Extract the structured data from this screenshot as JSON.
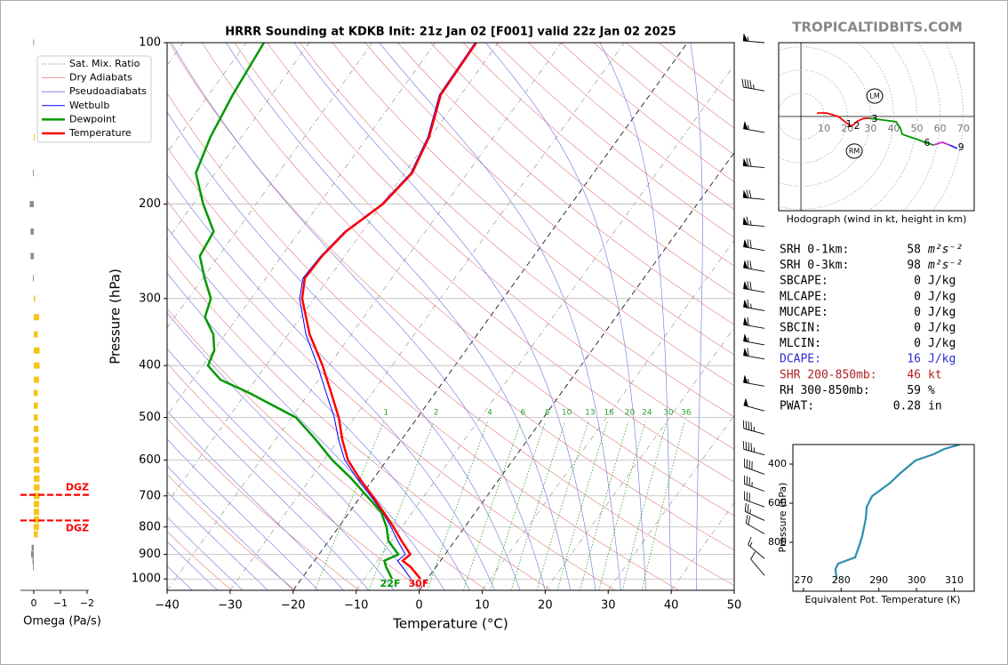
{
  "chart_data": [
    {
      "type": "skewt",
      "title": "HRRR Sounding at KDKB Init: 21z Jan 02 [F001] valid 22z Jan 02 2025",
      "xlabel": "Temperature (°C)",
      "ylabel": "Pressure (hPa)",
      "xlim": [
        -40,
        50
      ],
      "ylim": [
        1050,
        100
      ],
      "ylog": true,
      "xticks": [
        {
          "value": -40,
          "label": "−40"
        },
        {
          "value": -30,
          "label": "−30"
        },
        {
          "value": -20,
          "label": "−20"
        },
        {
          "value": -10,
          "label": "−10"
        },
        0,
        10,
        20,
        30,
        40,
        50
      ],
      "yticks": [
        100,
        200,
        300,
        400,
        500,
        600,
        700,
        800,
        900,
        1000
      ],
      "grid": true,
      "legend": "upper left",
      "reference_lines": [
        {
          "name": "Sat. Mix. Ratio",
          "color": "#2ca02c",
          "labels": [
            1,
            2,
            4,
            6,
            8,
            10,
            13,
            16,
            20,
            24,
            30,
            36
          ]
        },
        {
          "name": "Dry Adiabats",
          "color": "#e07b7b"
        },
        {
          "name": "Pseudoadiabats",
          "color": "#6f6fe0"
        }
      ],
      "series": [
        {
          "name": "Wetbulb",
          "color": "#0000ff",
          "x": [
            -2.6,
            -5.3,
            -6.8,
            -6.3,
            -9.0,
            -11.7,
            -14.8,
            -18.5,
            -22.6,
            -26.7,
            -30.0,
            -33.2,
            -37.3,
            -41.8,
            -47.2,
            -52.3,
            -54.1,
            -53.8,
            -52.8,
            -50.1,
            -49.0,
            -50.4,
            -53.4,
            -53.7
          ],
          "values": [
            1000,
            950,
            925,
            900,
            850,
            800,
            750,
            700,
            650,
            600,
            550,
            500,
            450,
            400,
            350,
            300,
            275,
            250,
            225,
            200,
            175,
            150,
            125,
            100
          ]
        },
        {
          "name": "Dewpoint",
          "color": "#009900",
          "surface_label": "22F",
          "x": [
            -5.6,
            -7.9,
            -8.9,
            -7.4,
            -10.5,
            -12.4,
            -15.0,
            -19.1,
            -23.5,
            -28.7,
            -33.6,
            -39.3,
            -49.5,
            -55.6,
            -59.2,
            -59.9,
            -61.9,
            -65.2,
            -66.4,
            -69.7,
            -73.0,
            -73.6,
            -78.4,
            -83.1,
            -84.9,
            -86.2,
            -87.2
          ],
          "values": [
            1000,
            950,
            925,
            900,
            850,
            800,
            750,
            700,
            650,
            600,
            550,
            500,
            450,
            425,
            400,
            375,
            350,
            325,
            300,
            275,
            250,
            225,
            200,
            175,
            150,
            125,
            100
          ]
        },
        {
          "name": "Temperature",
          "color": "#ff0000",
          "surface_label": "30F",
          "x": [
            -1.1,
            -4.0,
            -6.0,
            -5.5,
            -8.4,
            -11.3,
            -14.6,
            -18.2,
            -22.2,
            -26.2,
            -29.4,
            -32.5,
            -36.5,
            -41.0,
            -46.6,
            -51.9,
            -53.8,
            -53.6,
            -52.6,
            -49.9,
            -48.8,
            -50.2,
            -53.2,
            -53.5
          ],
          "values": [
            1000,
            950,
            925,
            900,
            850,
            800,
            750,
            700,
            650,
            600,
            550,
            500,
            450,
            400,
            350,
            300,
            275,
            250,
            225,
            200,
            175,
            150,
            125,
            100
          ]
        }
      ],
      "wind_barbs": {
        "values": [
          100,
          123,
          147,
          171,
          196,
          220,
          244,
          267,
          292,
          316,
          341,
          366,
          389,
          437,
          486,
          537,
          587,
          638,
          686,
          734,
          778,
          824,
          916,
          985
        ],
        "speed": [
          55,
          45,
          55,
          70,
          70,
          65,
          70,
          70,
          70,
          65,
          60,
          55,
          60,
          55,
          50,
          45,
          45,
          40,
          35,
          30,
          25,
          20,
          15,
          10
        ],
        "direction": [
          275,
          280,
          280,
          275,
          275,
          275,
          280,
          280,
          280,
          280,
          280,
          280,
          280,
          280,
          285,
          285,
          285,
          290,
          290,
          290,
          295,
          300,
          310,
          320
        ]
      }
    },
    {
      "type": "hbar",
      "xlabel": "Omega (Pa/s)",
      "xlim": [
        0.5,
        -2.07
      ],
      "ylim": [
        1050,
        100
      ],
      "ylog": true,
      "xticks": [
        0,
        {
          "value": -1,
          "label": "−1"
        },
        {
          "value": -2,
          "label": "−2"
        }
      ],
      "color": "#f5c518",
      "positive_color": "#8c8c8c",
      "y": [
        100,
        150,
        175,
        200,
        225,
        250,
        275,
        300,
        325,
        350,
        375,
        400,
        425,
        450,
        475,
        500,
        525,
        550,
        575,
        600,
        625,
        650,
        675,
        700,
        725,
        750,
        775,
        800,
        825,
        875,
        900,
        925,
        950
      ],
      "values": [
        0.02,
        -0.02,
        0.03,
        0.15,
        0.12,
        0.12,
        0.03,
        -0.05,
        -0.2,
        -0.15,
        -0.22,
        -0.22,
        -0.2,
        -0.15,
        -0.15,
        -0.15,
        -0.18,
        -0.18,
        -0.18,
        -0.2,
        -0.22,
        -0.22,
        -0.22,
        -0.22,
        -0.2,
        -0.2,
        -0.2,
        -0.2,
        -0.15,
        0.08,
        0.1,
        0.05,
        0.03
      ],
      "annotations": [
        {
          "text": "DGZ",
          "y": 697,
          "color": "#ff0000"
        },
        {
          "text": "DGZ",
          "y": 778,
          "color": "#ff0000"
        }
      ]
    },
    {
      "type": "hodograph",
      "caption": "Hodograph (wind in kt, height in km)",
      "xlim": [
        -9.6,
        74.7
      ],
      "ylim": [
        -40.6,
        31.8
      ],
      "xticks": [
        10,
        20,
        30,
        40,
        50,
        60,
        70
      ],
      "series": [
        {
          "color": "#ff0000",
          "x": [
            6.9,
            11.1,
            16.1,
            19.5,
            21.8,
            24.5,
            27.2,
            29.5
          ],
          "values": [
            1.5,
            1.5,
            0,
            -2.7,
            -4.2,
            -1.9,
            -0.8,
            -0.8
          ]
        },
        {
          "color": "#009900",
          "x": [
            29.5,
            32.2,
            41.0,
            42.9,
            43.7,
            49.4,
            53.3,
            57.1
          ],
          "values": [
            -0.8,
            -1.1,
            -2.3,
            -5.0,
            -7.7,
            -9.6,
            -11.1,
            -12.3
          ]
        },
        {
          "color": "#cc33cc",
          "x": [
            57.1,
            60.9,
            64.0
          ],
          "values": [
            -12.3,
            -11.1,
            -12.3
          ]
        },
        {
          "color": "#3333ff",
          "x": [
            64.0,
            67.4
          ],
          "values": [
            -12.3,
            -13.8
          ]
        }
      ],
      "height_labels": [
        {
          "text": "1",
          "x": 20.7,
          "y": -3.4
        },
        {
          "text": "2",
          "x": 24.1,
          "y": -4.2
        },
        {
          "text": "3",
          "x": 31.8,
          "y": -1.1
        },
        {
          "text": "6",
          "x": 54.4,
          "y": -11.5
        },
        {
          "text": "9",
          "x": 69.0,
          "y": -13.4
        }
      ],
      "storm_motion": [
        {
          "text": "LM",
          "x": 31.8,
          "y": 8.8
        },
        {
          "text": "RM",
          "x": 23.0,
          "y": -14.9
        }
      ]
    },
    {
      "type": "line",
      "xlabel": "Equivalent Pot. Temperature (K)",
      "ylabel": "Pressure (hPa)",
      "xlim": [
        267.2,
        315.3
      ],
      "ylim": [
        1050,
        300
      ],
      "xticks": [
        270,
        280,
        290,
        300,
        310
      ],
      "yticks": [
        400,
        600,
        800
      ],
      "series": [
        {
          "color": "#2b8fad",
          "x": [
            278.8,
            278.5,
            279.2,
            283.7,
            284.7,
            285.6,
            286.5,
            286.8,
            288.2,
            293.1,
            295.5,
            299.7,
            304.5,
            307.3,
            311.5
          ],
          "values": [
            991,
            936,
            909,
            877,
            823,
            768,
            682,
            618,
            564,
            495,
            450,
            382,
            350,
            323,
            300
          ]
        }
      ]
    }
  ],
  "indices": [
    {
      "label": "SRH 0-1km:",
      "value": 58,
      "unit": "m²s⁻²"
    },
    {
      "label": "SRH 0-3km:",
      "value": 98,
      "unit": "m²s⁻²"
    },
    {
      "label": "SBCAPE:",
      "value": 0,
      "unit": "J/kg"
    },
    {
      "label": "MLCAPE:",
      "value": 0,
      "unit": "J/kg"
    },
    {
      "label": "MUCAPE:",
      "value": 0,
      "unit": "J/kg"
    },
    {
      "label": "SBCIN:",
      "value": 0,
      "unit": "J/kg"
    },
    {
      "label": "MLCIN:",
      "value": 0,
      "unit": "J/kg"
    },
    {
      "label": "DCAPE:",
      "value": 16,
      "unit": "J/kg",
      "color": "#2a2ad0"
    },
    {
      "label": "SHR 200-850mb:",
      "value": 46,
      "unit": "kt",
      "color": "#b22222"
    },
    {
      "label": "RH 300-850mb:",
      "value": 59,
      "unit": "%"
    },
    {
      "label": "PWAT:",
      "value": 0.28,
      "unit": "in"
    }
  ],
  "watermark": "TROPICALTIDBITS.COM"
}
